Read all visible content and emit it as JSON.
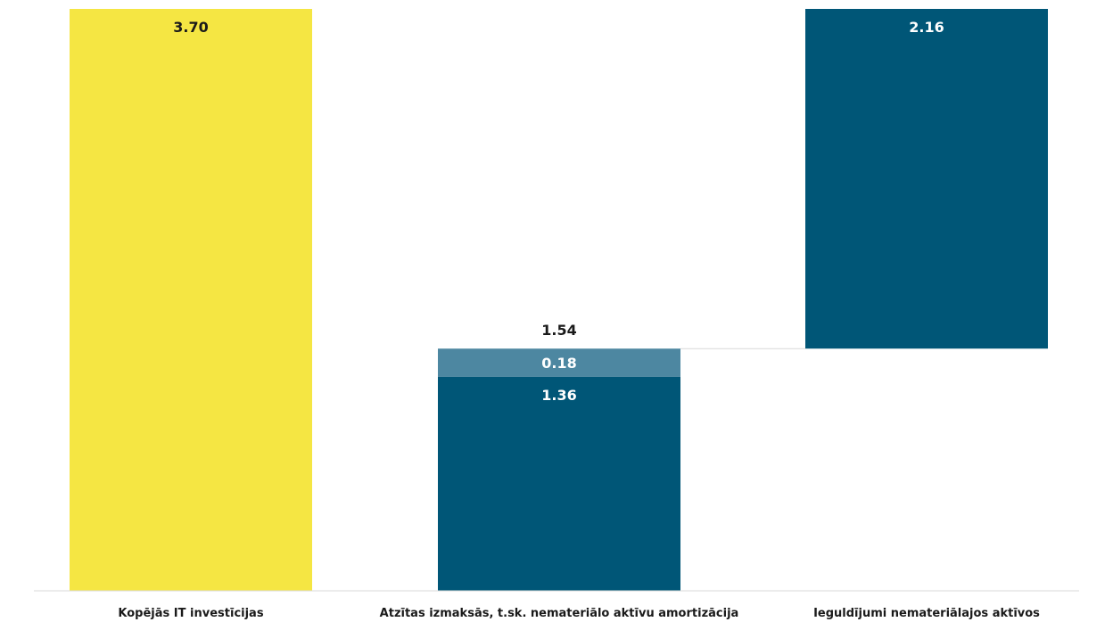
{
  "chart_data": {
    "type": "bar",
    "subtype": "waterfall",
    "title": "",
    "xlabel": "",
    "ylabel": "",
    "ylim": [
      0,
      3.7
    ],
    "grid": false,
    "legend": "none",
    "categories": [
      "Kopējās IT investīcijas",
      "Atzītas izmaksās, t.sk. nemateriālo aktīvu amortizācija",
      "Ieguldījumi nemateriālajos aktīvos"
    ],
    "bars": [
      {
        "category_index": 0,
        "total_label": "",
        "segments": [
          {
            "start": 0,
            "value": 3.7,
            "label": "3.70",
            "color": "#f5e643",
            "label_color": "#1a1a1a"
          }
        ]
      },
      {
        "category_index": 1,
        "total_label": "1.54",
        "segments": [
          {
            "start": 0,
            "value": 1.36,
            "label": "1.36",
            "color": "#005677",
            "label_color": "#ffffff"
          },
          {
            "start": 1.36,
            "value": 0.18,
            "label": "0.18",
            "color": "#4d87a1",
            "label_color": "#ffffff"
          }
        ]
      },
      {
        "category_index": 2,
        "total_label": "",
        "segments": [
          {
            "start": 1.54,
            "value": 2.16,
            "label": "2.16",
            "color": "#005677",
            "label_color": "#ffffff"
          }
        ]
      }
    ],
    "connector": {
      "from_category": 1,
      "to_category": 2,
      "value": 1.54
    }
  }
}
